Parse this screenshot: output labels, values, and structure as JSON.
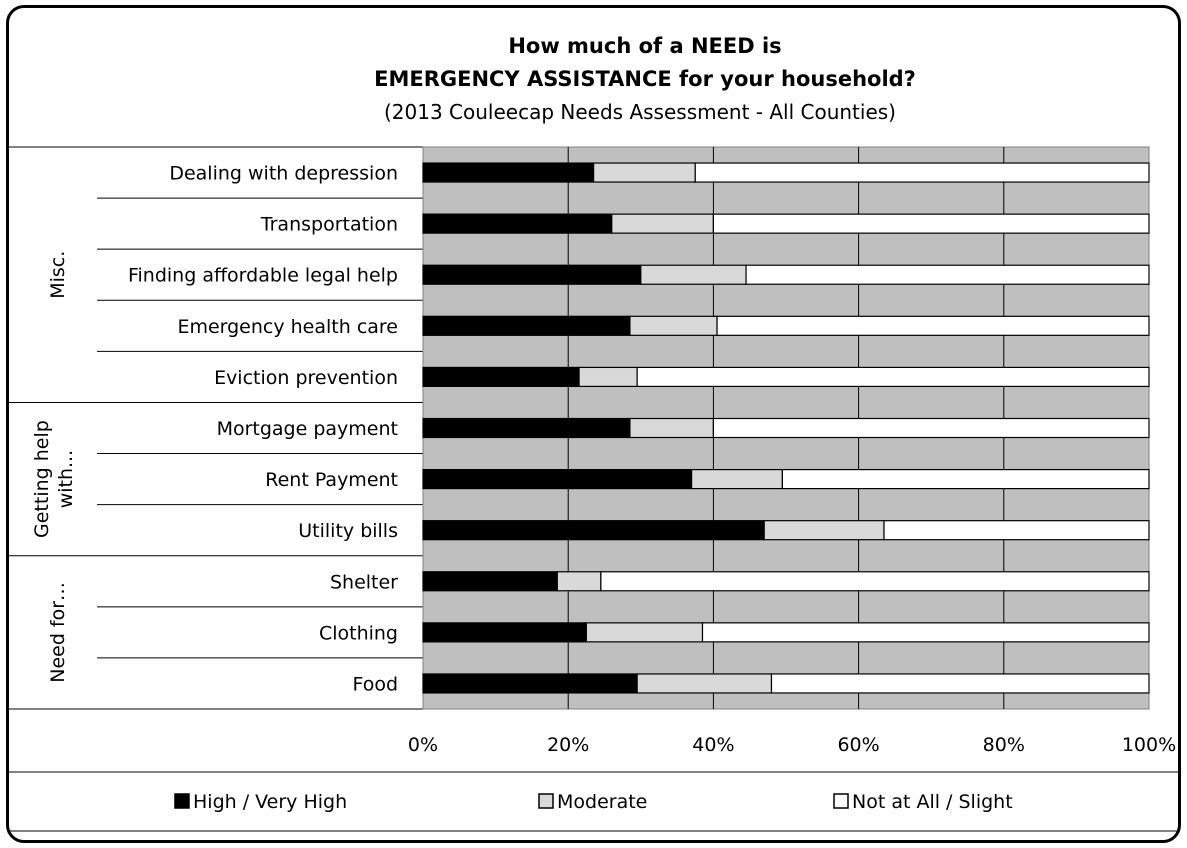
{
  "chart_data": {
    "type": "bar",
    "orientation": "horizontal",
    "stacked": true,
    "title_lines": [
      "How much of a NEED is",
      "EMERGENCY ASSISTANCE  for your household?"
    ],
    "subtitle": "(2013 Couleecap Needs Assessment - All Counties)",
    "categories": [
      "Dealing with depression",
      "Transportation",
      "Finding affordable legal help",
      "Emergency health care",
      "Eviction prevention",
      "Mortgage payment",
      "Rent Payment",
      "Utility bills",
      "Shelter",
      "Clothing",
      "Food"
    ],
    "groups": [
      {
        "label": "Misc.",
        "start": 0,
        "end": 4
      },
      {
        "label_lines": [
          "Getting help",
          "with..."
        ],
        "start": 5,
        "end": 7
      },
      {
        "label": "Need for…",
        "start": 8,
        "end": 10
      }
    ],
    "series": [
      {
        "name": "High / Very High",
        "color": "#000000",
        "values": [
          23.5,
          26,
          30,
          28.5,
          21.5,
          28.5,
          37,
          47,
          18.5,
          22.5,
          29.5
        ]
      },
      {
        "name": "Moderate",
        "color": "#d9d9d9",
        "values": [
          14,
          14,
          14.5,
          12,
          8,
          11.5,
          12.5,
          16.5,
          6,
          16,
          18.5
        ]
      },
      {
        "name": "Not at All / Slight",
        "color": "#ffffff",
        "values": [
          62.5,
          60,
          55.5,
          59.5,
          70.5,
          60,
          50.5,
          36.5,
          75.5,
          61.5,
          52
        ]
      }
    ],
    "xlim": [
      0,
      100
    ],
    "xticks": [
      "0%",
      "20%",
      "40%",
      "60%",
      "80%",
      "100%"
    ],
    "plot_background": "#bfbfbf",
    "grid": true,
    "legend_position": "bottom"
  }
}
